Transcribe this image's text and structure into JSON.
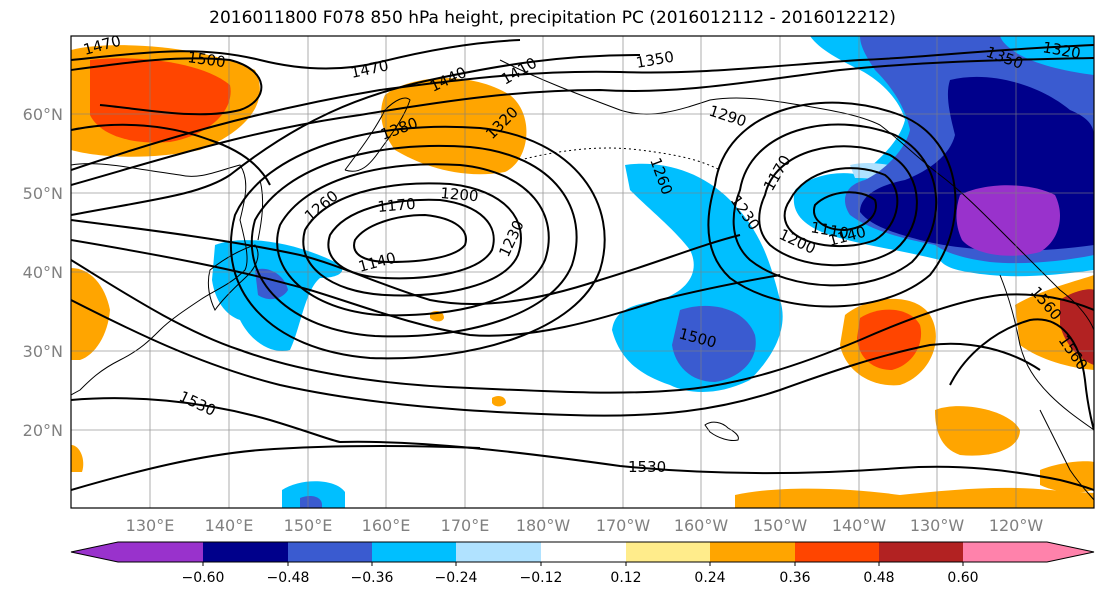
{
  "title": "2016011800 F078 850 hPa height, precipitation PC (2016012112 - 2016012212)",
  "colors": {
    "neg_lt_060": "#9932cc",
    "neg_048_060": "#00008b",
    "neg_036_048": "#3a5bd0",
    "neg_024_036": "#00bfff",
    "neg_012_024": "#b0e2ff",
    "neutral": "#ffffff",
    "pos_012_024": "#ffec8b",
    "pos_024_036": "#ffa500",
    "pos_036_048": "#ff4500",
    "pos_048_060": "#b22222",
    "pos_gt_060": "#ff82ab",
    "contour": "#000000",
    "grid": "#808080"
  },
  "latitude_labels": [
    "60°N",
    "50°N",
    "40°N",
    "30°N",
    "20°N"
  ],
  "longitude_labels": [
    "130°E",
    "140°E",
    "150°E",
    "160°E",
    "170°E",
    "180°W",
    "170°W",
    "160°W",
    "150°W",
    "140°W",
    "130°W",
    "120°W"
  ],
  "contour_labels": [
    {
      "text": "1470"
    },
    {
      "text": "1500"
    },
    {
      "text": "1470"
    },
    {
      "text": "1440"
    },
    {
      "text": "1410"
    },
    {
      "text": "1350"
    },
    {
      "text": "1320"
    },
    {
      "text": "1380"
    },
    {
      "text": "1350"
    },
    {
      "text": "1320"
    },
    {
      "text": "1290"
    },
    {
      "text": "1260"
    },
    {
      "text": "1260"
    },
    {
      "text": "1200"
    },
    {
      "text": "1170"
    },
    {
      "text": "1170"
    },
    {
      "text": "1230"
    },
    {
      "text": "1140"
    },
    {
      "text": "1230"
    },
    {
      "text": "1110"
    },
    {
      "text": "1140"
    },
    {
      "text": "1200"
    },
    {
      "text": "1500"
    },
    {
      "text": "1530"
    },
    {
      "text": "1530"
    },
    {
      "text": "1560"
    },
    {
      "text": "1560"
    }
  ],
  "colorbar": {
    "ticks": [
      "−0.60",
      "−0.48",
      "−0.36",
      "−0.24",
      "−0.12",
      "0.12",
      "0.24",
      "0.36",
      "0.48",
      "0.60"
    ]
  }
}
